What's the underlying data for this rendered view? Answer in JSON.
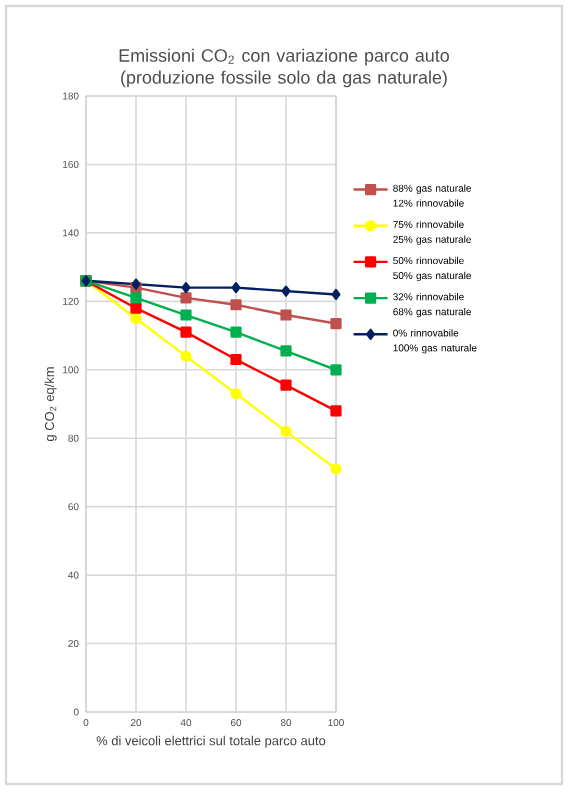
{
  "chart_data": {
    "type": "line",
    "title": "Emissioni CO$_{2}$ con variazione parco auto (produzione fossile solo da gas naturale)",
    "xlabel": "% di veicoli elettrici sul totale parco auto",
    "ylabel": "g CO$_{2}$ eq/km",
    "x": [
      0,
      20,
      40,
      60,
      80,
      100
    ],
    "xlim": [
      0,
      100
    ],
    "xticks": [
      0,
      20,
      40,
      60,
      80,
      100
    ],
    "ylim": [
      0,
      180
    ],
    "yticks": [
      0,
      20,
      40,
      60,
      80,
      100,
      120,
      140,
      160,
      180
    ],
    "grid": true,
    "legend": "right",
    "line_style": "solid",
    "series": [
      {
        "name": "88% gas naturale 12% rinnovabile",
        "color": "#c0504d",
        "marker": "square",
        "values": [
          126,
          124,
          121,
          119,
          116,
          113.5
        ]
      },
      {
        "name": "75% rinnovabile 25% gas naturale",
        "color": "#ffff00",
        "marker": "circle",
        "values": [
          126,
          115,
          104,
          93,
          82,
          71
        ]
      },
      {
        "name": "50% rinnovabile 50% gas naturale",
        "color": "#ff0000",
        "marker": "square",
        "values": [
          126,
          118,
          111,
          103,
          95.5,
          88
        ]
      },
      {
        "name": "32% rinnovabile 68% gas naturale",
        "color": "#00b050",
        "marker": "square",
        "values": [
          126,
          121,
          116,
          111,
          105.5,
          100
        ]
      },
      {
        "name": "0% rinnovabile 100% gas naturale",
        "color": "#002060",
        "marker": "diamond",
        "values": [
          126,
          125,
          124,
          124,
          123,
          122
        ]
      }
    ]
  }
}
